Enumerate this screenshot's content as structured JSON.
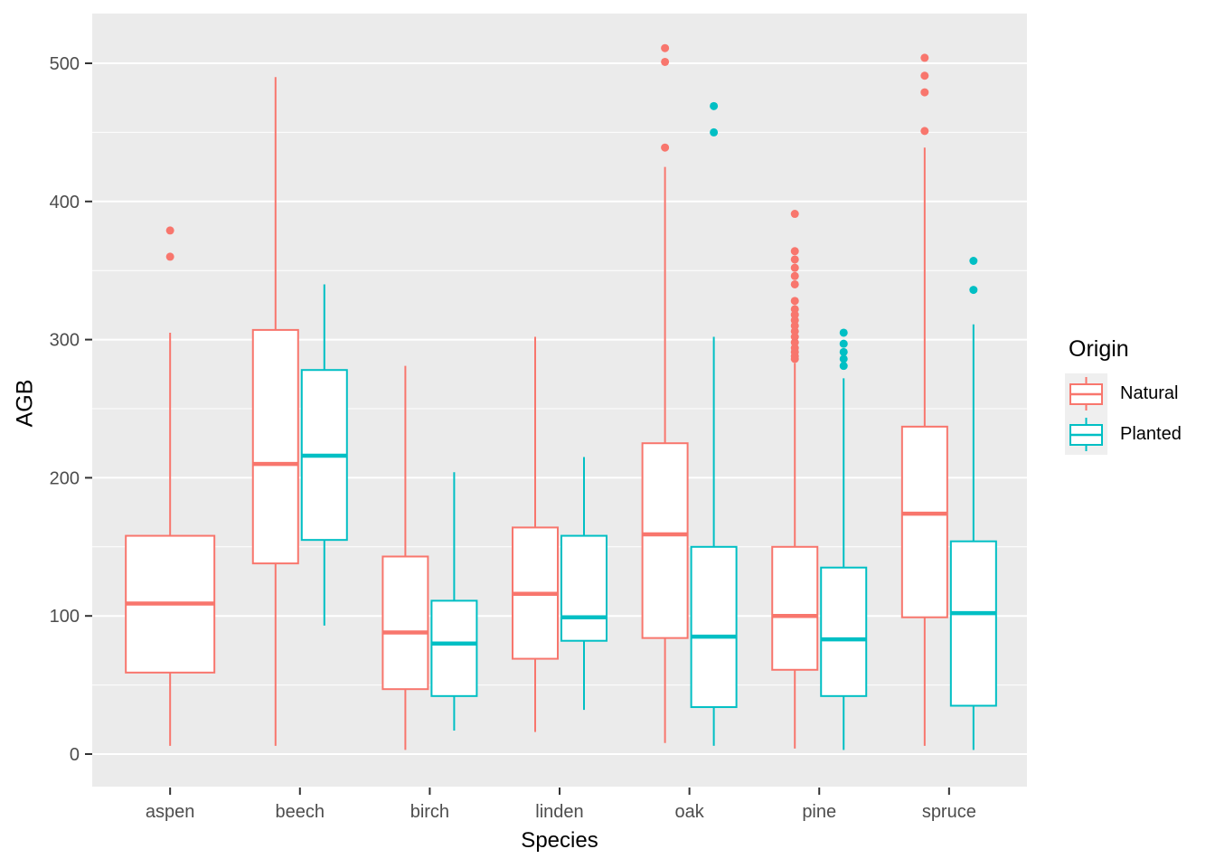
{
  "chart_data": {
    "type": "boxplot",
    "title": "",
    "xlabel": "Species",
    "ylabel": "AGB",
    "categories": [
      "aspen",
      "beech",
      "birch",
      "linden",
      "oak",
      "pine",
      "spruce"
    ],
    "y_axis": {
      "tick_values": [
        0,
        100,
        200,
        300,
        400,
        500
      ],
      "tick_labels": [
        "0",
        "100",
        "200",
        "300",
        "400",
        "500"
      ],
      "minor_gridlines": [
        50,
        150,
        250,
        350,
        450
      ],
      "range": [
        -24,
        536
      ],
      "grid": "on"
    },
    "legend": {
      "title": "Origin",
      "position": "right",
      "entries": [
        {
          "label": "Natural",
          "color": "#F8766D"
        },
        {
          "label": "Planted",
          "color": "#00BFC4"
        }
      ]
    },
    "panel_background": "#EBEBEB",
    "gridline_color": "#FFFFFF",
    "axis_text_color": "#4D4D4D",
    "series": [
      {
        "name": "Natural",
        "color": "#F8766D",
        "boxes": [
          {
            "category": "aspen",
            "min": 6,
            "q1": 59,
            "median": 109,
            "q3": 158,
            "max": 305,
            "outliers": [
              360,
              379
            ]
          },
          {
            "category": "beech",
            "min": 6,
            "q1": 138,
            "median": 210,
            "q3": 307,
            "max": 490,
            "outliers": []
          },
          {
            "category": "birch",
            "min": 3,
            "q1": 47,
            "median": 88,
            "q3": 143,
            "max": 281,
            "outliers": []
          },
          {
            "category": "linden",
            "min": 16,
            "q1": 69,
            "median": 116,
            "q3": 164,
            "max": 302,
            "outliers": []
          },
          {
            "category": "oak",
            "min": 8,
            "q1": 84,
            "median": 159,
            "q3": 225,
            "max": 425,
            "outliers": [
              439,
              501,
              511
            ]
          },
          {
            "category": "pine",
            "min": 4,
            "q1": 61,
            "median": 100,
            "q3": 150,
            "max": 283,
            "outliers": [
              286,
              288,
              291,
              294,
              298,
              302,
              306,
              310,
              314,
              318,
              322,
              328,
              340,
              346,
              352,
              358,
              364,
              391
            ]
          },
          {
            "category": "spruce",
            "min": 6,
            "q1": 99,
            "median": 174,
            "q3": 237,
            "max": 439,
            "outliers": [
              451,
              479,
              491,
              504
            ]
          }
        ]
      },
      {
        "name": "Planted",
        "color": "#00BFC4",
        "boxes": [
          {
            "category": "beech",
            "min": 93,
            "q1": 155,
            "median": 216,
            "q3": 278,
            "max": 340,
            "outliers": []
          },
          {
            "category": "birch",
            "min": 17,
            "q1": 42,
            "median": 80,
            "q3": 111,
            "max": 204,
            "outliers": []
          },
          {
            "category": "linden",
            "min": 32,
            "q1": 82,
            "median": 99,
            "q3": 158,
            "max": 215,
            "outliers": []
          },
          {
            "category": "oak",
            "min": 6,
            "q1": 34,
            "median": 85,
            "q3": 150,
            "max": 302,
            "outliers": [
              450,
              469
            ]
          },
          {
            "category": "pine",
            "min": 3,
            "q1": 42,
            "median": 83,
            "q3": 135,
            "max": 272,
            "outliers": [
              281,
              286,
              291,
              297,
              305
            ]
          },
          {
            "category": "spruce",
            "min": 3,
            "q1": 35,
            "median": 102,
            "q3": 154,
            "max": 311,
            "outliers": [
              336,
              357
            ]
          }
        ]
      }
    ]
  }
}
